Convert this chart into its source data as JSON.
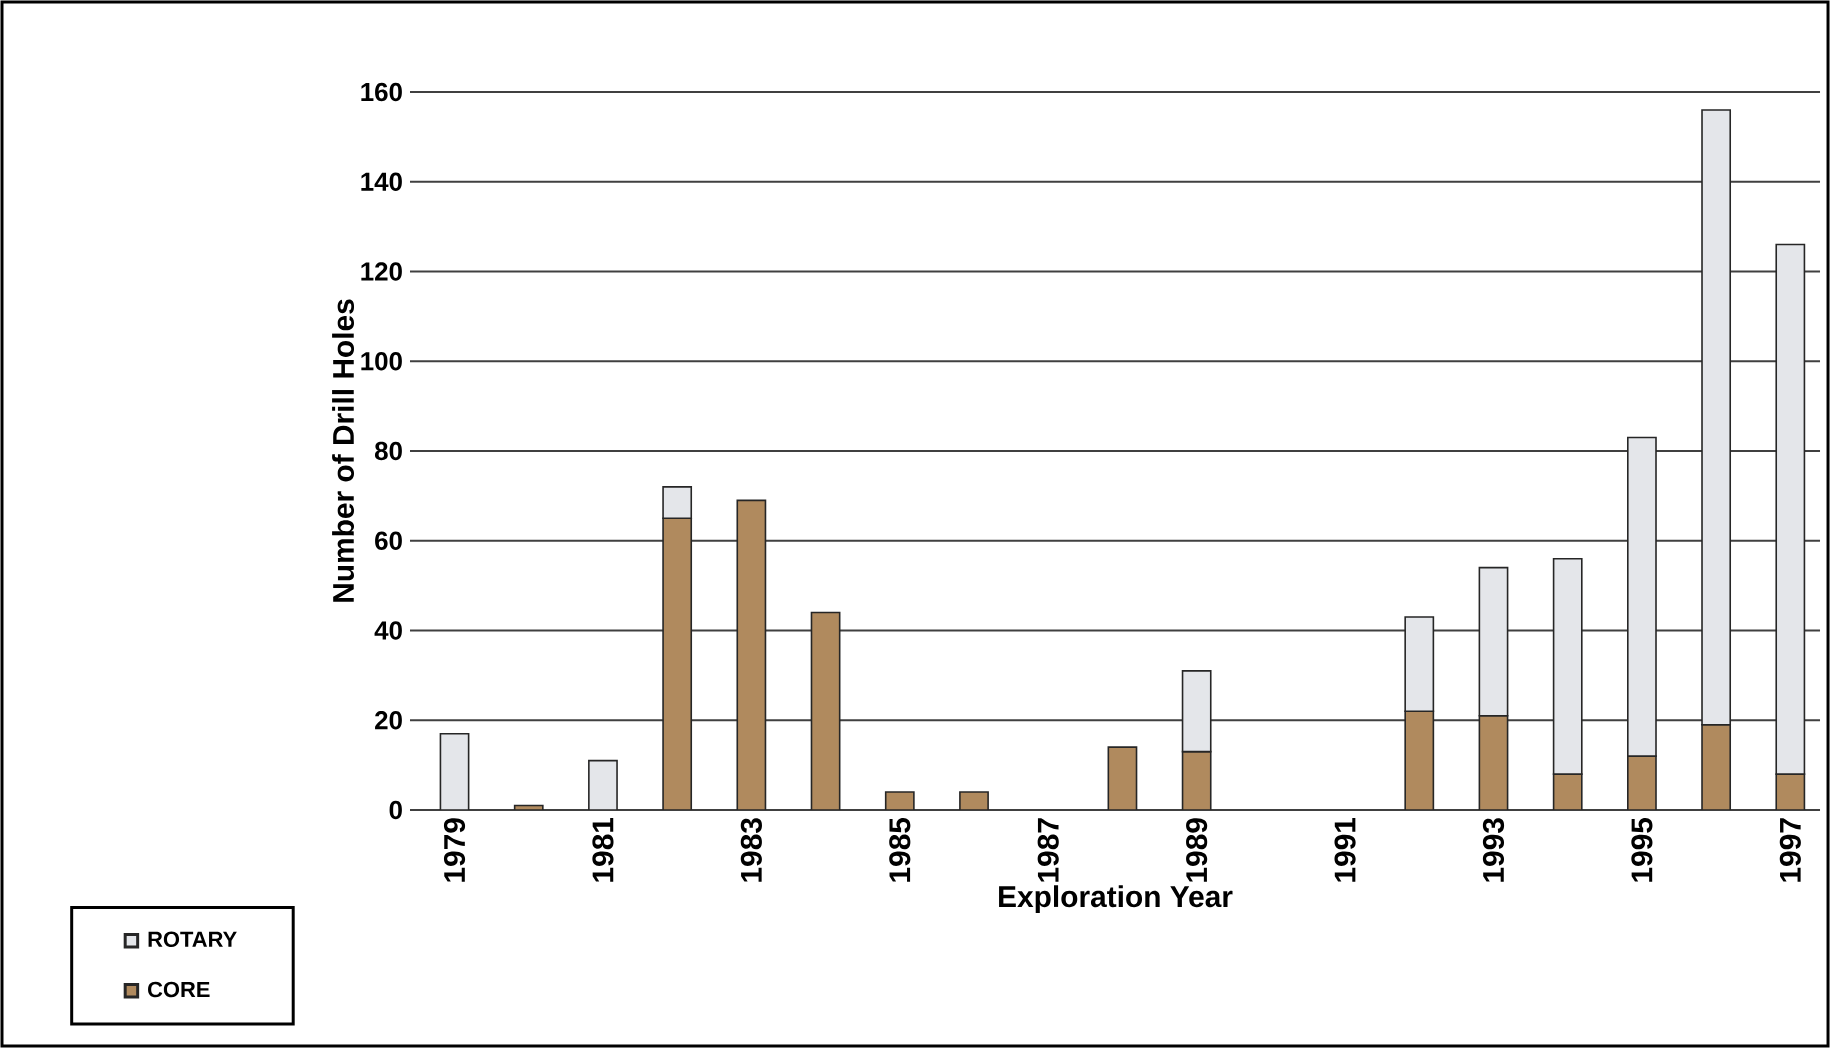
{
  "chart_data": {
    "type": "bar",
    "stacked": true,
    "xlabel": "Exploration Year",
    "ylabel": "Number of Drill Holes",
    "categories": [
      "1979",
      null,
      "1981",
      null,
      "1983",
      null,
      "1985",
      null,
      "1987",
      null,
      "1989",
      null,
      "1991",
      null,
      "1993",
      null,
      "1995",
      null,
      "1997"
    ],
    "series": [
      {
        "name": "CORE",
        "color": "#b08a5e",
        "values": [
          null,
          1,
          null,
          65,
          69,
          44,
          4,
          4,
          null,
          14,
          13,
          null,
          null,
          22,
          21,
          8,
          12,
          19,
          8
        ]
      },
      {
        "name": "ROTARY",
        "color": "#e4e6ea",
        "values": [
          17,
          null,
          11,
          7,
          null,
          null,
          null,
          null,
          null,
          null,
          18,
          null,
          null,
          21,
          33,
          48,
          71,
          137,
          118
        ]
      }
    ],
    "ylim": [
      0,
      160
    ],
    "yticks": [
      0,
      20,
      40,
      60,
      80,
      100,
      120,
      140,
      160
    ],
    "grid": "y",
    "legend": "bottom left"
  }
}
